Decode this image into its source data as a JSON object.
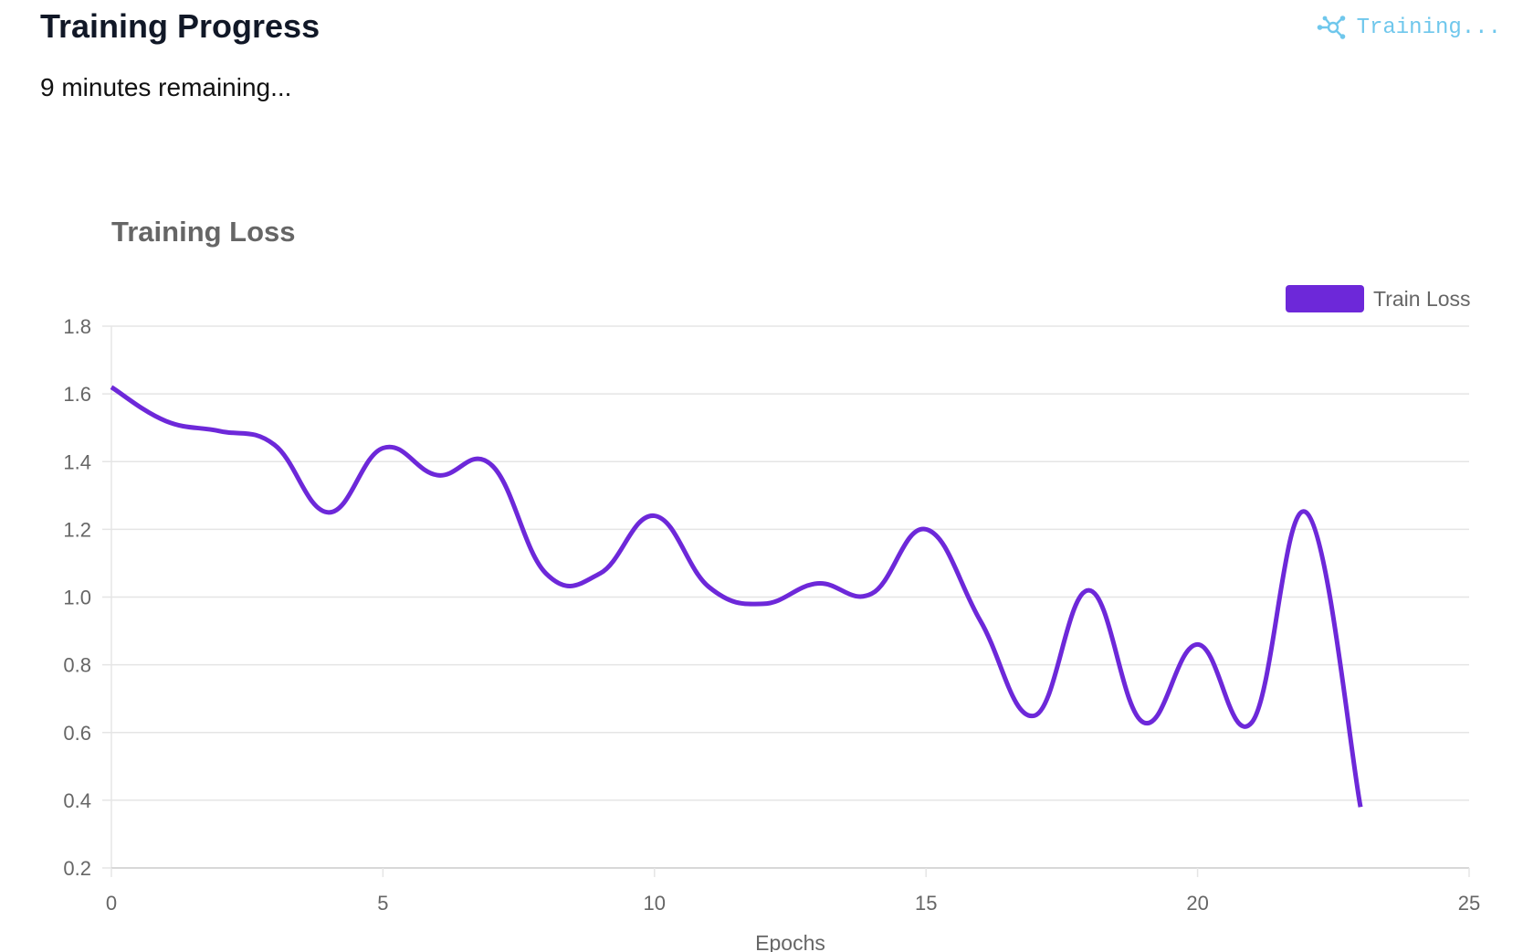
{
  "header": {
    "title": "Training Progress",
    "status_label": "Training...",
    "status_icon": "network-nodes-icon",
    "remaining": "9 minutes remaining..."
  },
  "colors": {
    "accent": "#6d28d9",
    "status": "#6fc7ec",
    "grid": "#e5e5e5",
    "text": "#666666"
  },
  "chart_data": {
    "type": "line",
    "title": "Training Loss",
    "xlabel": "Epochs",
    "ylabel": "",
    "xlim": [
      0,
      25
    ],
    "ylim": [
      0.2,
      1.8
    ],
    "xticks": [
      0,
      5,
      10,
      15,
      20,
      25
    ],
    "yticks": [
      0.2,
      0.4,
      0.6,
      0.8,
      1.0,
      1.2,
      1.4,
      1.6,
      1.8
    ],
    "grid": true,
    "legend": "top-right",
    "series": [
      {
        "name": "Train Loss",
        "color": "#6d28d9",
        "x": [
          0,
          1,
          2,
          3,
          4,
          5,
          6,
          7,
          8,
          9,
          10,
          11,
          12,
          13,
          14,
          15,
          16,
          17,
          18,
          19,
          20,
          21,
          22,
          23
        ],
        "values": [
          1.62,
          1.52,
          1.49,
          1.45,
          1.25,
          1.44,
          1.36,
          1.39,
          1.07,
          1.07,
          1.24,
          1.03,
          0.98,
          1.04,
          1.01,
          1.2,
          0.93,
          0.65,
          1.02,
          0.63,
          0.86,
          0.63,
          1.25,
          0.38
        ]
      }
    ]
  }
}
